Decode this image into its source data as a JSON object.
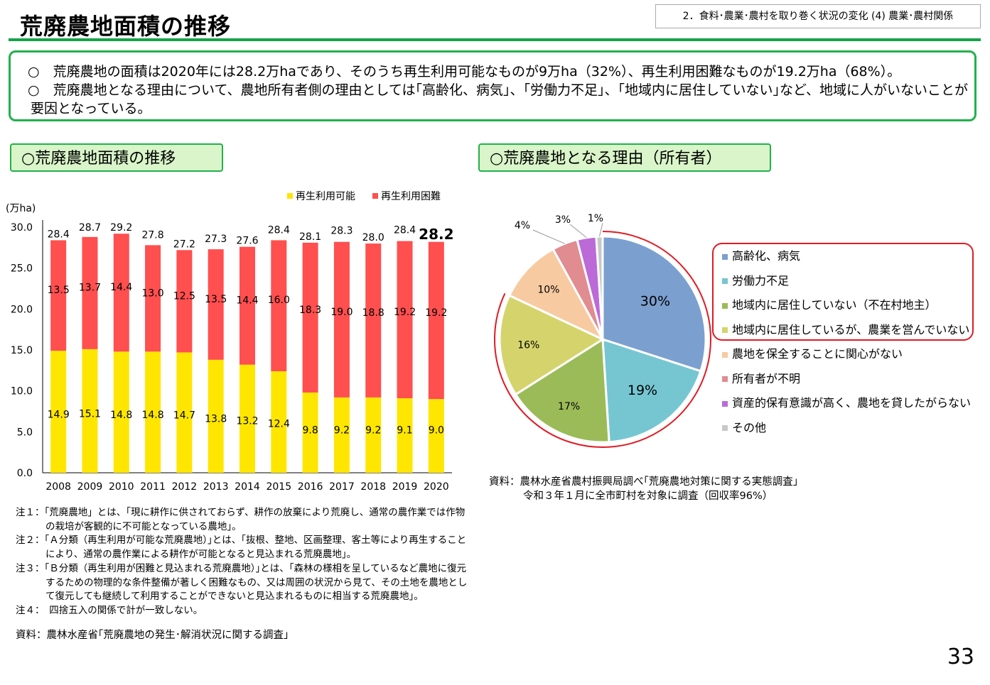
{
  "header": {
    "title": "荒廃農地面積の推移",
    "section": "2．食料･農業･農村を取り巻く状況の変化 (4) 農業･農村関係"
  },
  "summary": [
    "○　荒廃農地の面積は2020年には28.2万haであり、そのうち再生利用可能なものが9万ha（32%）、再生利用困難なものが19.2万ha（68%）。",
    "○　荒廃農地となる理由について、農地所有者側の理由としては｢高齢化、病気｣、｢労働力不足｣、｢地域内に居住していない｣など、地域に人がいないことが",
    "要因となっている。"
  ],
  "chips": {
    "left": "○荒廃農地面積の推移",
    "right": "○荒廃農地となる理由（所有者）"
  },
  "chart_data": [
    {
      "type": "bar",
      "stacked": true,
      "title": "荒廃農地面積の推移",
      "ylabel": "(万ha)",
      "ylim": [
        0,
        30
      ],
      "yticks": [
        "0.0",
        "5.0",
        "10.0",
        "15.0",
        "20.0",
        "25.0",
        "30.0"
      ],
      "categories": [
        "2008",
        "2009",
        "2010",
        "2011",
        "2012",
        "2013",
        "2014",
        "2015",
        "2016",
        "2017",
        "2018",
        "2019",
        "2020"
      ],
      "series": [
        {
          "name": "再生利用可能",
          "color": "#ffe600",
          "values": [
            14.9,
            15.1,
            14.8,
            14.8,
            14.7,
            13.8,
            13.2,
            12.4,
            9.8,
            9.2,
            9.2,
            9.1,
            9.0
          ]
        },
        {
          "name": "再生利用困難",
          "color": "#ff4f4f",
          "values": [
            13.5,
            13.7,
            14.4,
            13.0,
            12.5,
            13.5,
            14.4,
            16.0,
            18.3,
            19.0,
            18.8,
            19.2,
            19.2
          ]
        }
      ],
      "totals": [
        28.4,
        28.7,
        29.2,
        27.8,
        27.2,
        27.3,
        27.6,
        28.4,
        28.1,
        28.3,
        28.0,
        28.4,
        28.2
      ],
      "legend": "top-right",
      "grid": false
    },
    {
      "type": "pie",
      "title": "荒廃農地となる理由（所有者）",
      "legend": "right",
      "labels": [
        "高齢化、病気",
        "労働力不足",
        "地域内に居住していない（不在村地主）",
        "地域内に居住しているが、農業を営んでいない",
        "農地を保全することに関心がない",
        "所有者が不明",
        "資産的保有意識が高く、農地を貸したがらない",
        "その他"
      ],
      "values": [
        30,
        19,
        17,
        16,
        10,
        4,
        3,
        1
      ],
      "colors": [
        "#7b9fcf",
        "#76c6d2",
        "#9bbb59",
        "#d5d46c",
        "#f8caa2",
        "#e08c90",
        "#bb6ad8",
        "#c8c8c8"
      ]
    }
  ],
  "notes": [
    "注１：「荒廃農地」とは、｢現に耕作に供されておらず、耕作の放棄により荒廃し、通常の農作業では作物の栽培が客観的に不可能となっている農地｣。",
    "注２：「Ａ分類（再生利用が可能な荒廃農地）｣とは、｢抜根、整地、区画整理、客土等により再生することにより、通常の農作業による耕作が可能となると見込まれる荒廃農地｣。",
    "注３：「Ｂ分類（再生利用が困難と見込まれる荒廃農地）｣とは、｢森林の様相を呈しているなど農地に復元するための物理的な条件整備が著しく困難なもの、又は周囲の状況から見て、その土地を農地として復元しても継続して利用することができないと見込まれるものに相当する荒廃農地｣。",
    "注４：　四捨五入の関係で計が一致しない。"
  ],
  "source_left": "資料：農林水産省｢荒廃農地の発生･解消状況に関する調査｣",
  "source_right": [
    "資料：農林水産省農村振興局調べ｢荒廃農地対策に関する実態調査｣",
    "令和３年１月に全市町村を対象に調査（回収率96%）"
  ],
  "page_number": "33"
}
